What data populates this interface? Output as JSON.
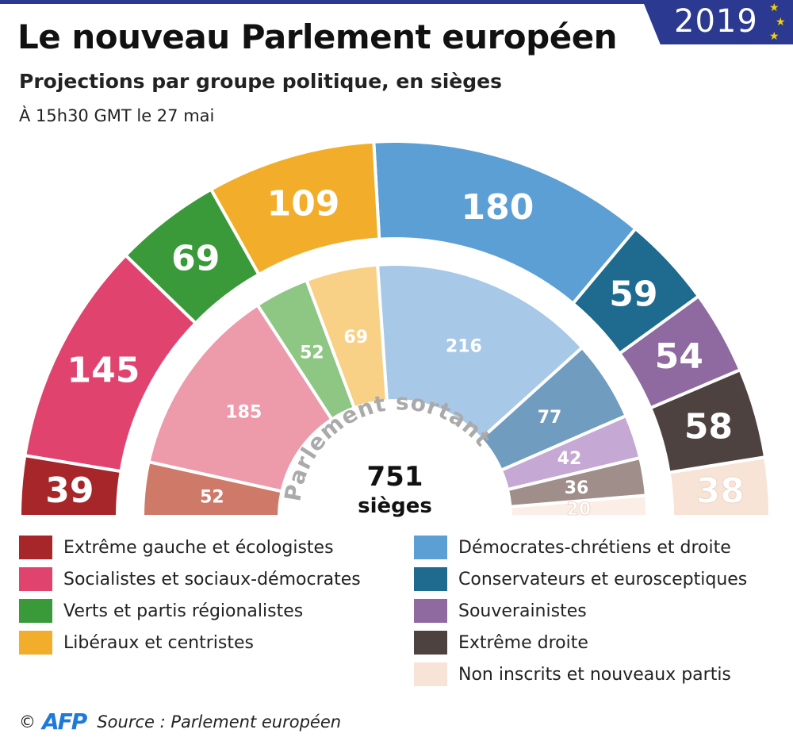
{
  "title": "Le nouveau Parlement européen",
  "subtitle": "Projections par groupe politique, en sièges",
  "timestamp": "À 15h30 GMT le 27 mai",
  "badge_year": "2019",
  "center": {
    "arc_label": "Parlement sortant",
    "total": "751",
    "total_unit": "sièges"
  },
  "footer": {
    "copyright": "©",
    "logo": "AFP",
    "source": "Source : Parlement européen"
  },
  "chart_data": {
    "type": "hemicycle",
    "categories": [
      "Extrême gauche et écologistes",
      "Socialistes et sociaux-démocrates",
      "Verts et partis régionalistes",
      "Libéraux et centristes",
      "Démocrates-chrétiens et droite",
      "Conservateurs et eurosceptiques",
      "Souverainistes",
      "Extrême droite",
      "Non inscrits et nouveaux partis"
    ],
    "series": [
      {
        "values": [
          39,
          145,
          69,
          109,
          180,
          59,
          54,
          58,
          38
        ],
        "colors": [
          "#a6262a",
          "#e0446e",
          "#3a9a3a",
          "#f2ae2a",
          "#5b9fd4",
          "#1f6a8f",
          "#8e6aa0",
          "#4e4241",
          "#f8e4d6"
        ]
      },
      {
        "name": "Parlement sortant",
        "values": [
          52,
          185,
          52,
          69,
          216,
          77,
          42,
          36,
          20
        ],
        "colors": [
          "#cf7a68",
          "#ed9aaa",
          "#8ec684",
          "#f8d086",
          "#a8c8e8",
          "#6f9cbf",
          "#c5a8d4",
          "#a08e8a",
          "#fbeee6"
        ]
      }
    ]
  }
}
